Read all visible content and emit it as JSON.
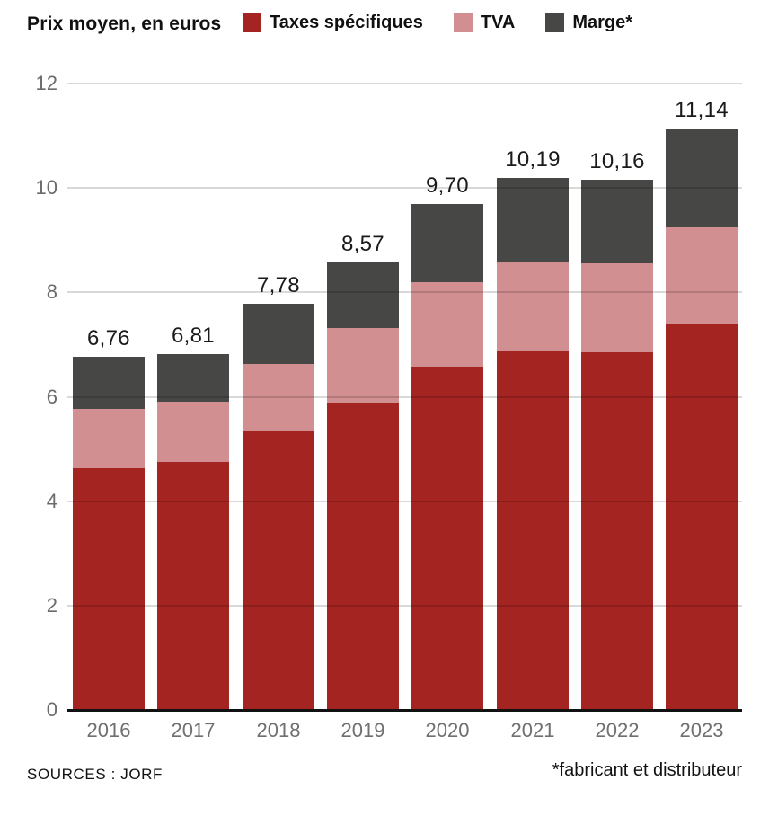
{
  "page": {
    "background": "#ffffff",
    "footer_source": "SOURCES : JORF",
    "footnote": "*fabricant et distributeur"
  },
  "header": {
    "title": "Prix moyen, en euros"
  },
  "chart_data": {
    "type": "bar",
    "stacked": true,
    "title": "Prix moyen, en euros",
    "categories": [
      "2016",
      "2017",
      "2018",
      "2019",
      "2020",
      "2021",
      "2022",
      "2023"
    ],
    "series": [
      {
        "name": "Taxes spécifiques",
        "color": "#a32421",
        "values": [
          4.64,
          4.76,
          5.33,
          5.89,
          6.58,
          6.87,
          6.86,
          7.38
        ]
      },
      {
        "name": "TVA",
        "color": "#d18f92",
        "values": [
          1.13,
          1.14,
          1.3,
          1.43,
          1.62,
          1.7,
          1.69,
          1.86
        ]
      },
      {
        "name": "Marge*",
        "color": "#474745",
        "values": [
          0.99,
          0.91,
          1.15,
          1.25,
          1.5,
          1.62,
          1.61,
          1.9
        ]
      }
    ],
    "totals": [
      "6,76",
      "6,81",
      "7,78",
      "8,57",
      "9,70",
      "10,19",
      "10,16",
      "11,14"
    ],
    "total_values": [
      6.76,
      6.81,
      7.78,
      8.57,
      9.7,
      10.19,
      10.16,
      11.14
    ],
    "xlabel": "",
    "ylabel": "",
    "ylim": [
      0,
      12
    ],
    "yticks": [
      0,
      2,
      4,
      6,
      8,
      10,
      12
    ],
    "grid": true,
    "legend_position": "top",
    "axis_color": "#111111",
    "tick_label_color": "#6b6b6b",
    "value_label_color": "#1a1a1a"
  }
}
